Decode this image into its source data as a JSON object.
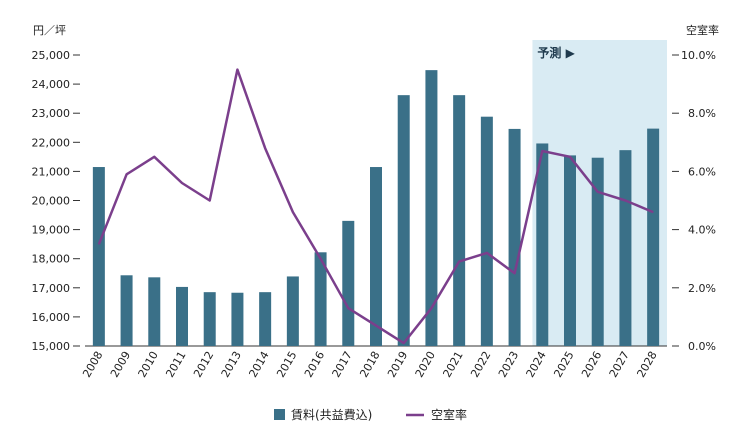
{
  "chart_data": {
    "type": "bar",
    "categories": [
      "2008",
      "2009",
      "2010",
      "2011",
      "2012",
      "2013",
      "2014",
      "2015",
      "2016",
      "2017",
      "2018",
      "2019",
      "2020",
      "2021",
      "2022",
      "2023",
      "2024",
      "2025",
      "2026",
      "2027",
      "2028"
    ],
    "series": [
      {
        "name": "賃料(共益費込)",
        "type": "bar",
        "axis": "left",
        "color": "#3a7088",
        "values": [
          21150,
          17430,
          17360,
          17030,
          16850,
          16830,
          16850,
          17390,
          18220,
          19300,
          21150,
          23620,
          24480,
          23620,
          22880,
          22460,
          21960,
          21550,
          21470,
          21730,
          22470
        ]
      },
      {
        "name": "空室率",
        "type": "line",
        "axis": "right",
        "color": "#7b3f8c",
        "values": [
          3.5,
          5.9,
          6.5,
          5.6,
          5.0,
          9.5,
          6.8,
          4.6,
          3.0,
          1.3,
          0.7,
          0.1,
          1.3,
          2.9,
          3.2,
          2.5,
          6.7,
          6.5,
          5.3,
          5.0,
          4.6
        ]
      }
    ],
    "y_left": {
      "unit_label": "円／坪",
      "min": 15000,
      "max": 25000,
      "ticks": [
        "15,000",
        "16,000",
        "17,000",
        "18,000",
        "19,000",
        "20,000",
        "21,000",
        "22,000",
        "23,000",
        "24,000",
        "25,000"
      ]
    },
    "y_right": {
      "unit_label": "空室率",
      "min": 0,
      "max": 10,
      "ticks": [
        "0.0%",
        "2.0%",
        "4.0%",
        "6.0%",
        "8.0%",
        "10.0%"
      ]
    },
    "forecast": {
      "label": "予測 ▶",
      "start": "2024",
      "end": "2028",
      "color": "#d9ebf3"
    },
    "grid": false,
    "legend": "bottom-center"
  }
}
